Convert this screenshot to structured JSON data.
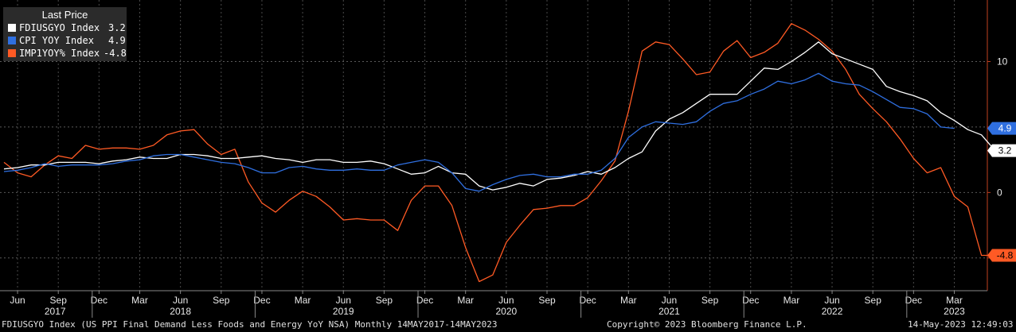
{
  "chart_data": {
    "type": "line",
    "legend": {
      "title": "Last Price",
      "placement": "top-left",
      "entries": [
        {
          "name": "FDIUSGYO Index",
          "last": "3.2",
          "color": "#ffffff"
        },
        {
          "name": "CPI YOY Index",
          "last": "4.9",
          "color": "#2f6fe0"
        },
        {
          "name": "IMP1YOY% Index",
          "last": "-4.8",
          "color": "#ff5a24"
        }
      ]
    },
    "ylim": [
      -7.5,
      14.7
    ],
    "yticks": [
      10,
      0
    ],
    "series": [
      {
        "name": "FDIUSGYO Index",
        "color": "#ffffff",
        "last_label": "3.2",
        "values": [
          1.8,
          1.9,
          2.1,
          2.1,
          2.3,
          2.3,
          2.3,
          2.2,
          2.4,
          2.5,
          2.7,
          2.6,
          2.6,
          2.9,
          2.9,
          2.8,
          2.6,
          2.6,
          2.7,
          2.8,
          2.6,
          2.5,
          2.3,
          2.5,
          2.5,
          2.3,
          2.3,
          2.4,
          2.2,
          1.8,
          1.4,
          1.5,
          2.0,
          1.5,
          1.4,
          0.5,
          0.2,
          0.4,
          0.7,
          0.5,
          1.0,
          1.1,
          1.3,
          1.6,
          1.4,
          1.9,
          2.6,
          3.1,
          4.7,
          5.6,
          6.1,
          6.8,
          7.5,
          7.5,
          7.5,
          8.5,
          9.5,
          9.4,
          10.0,
          10.7,
          11.5,
          10.6,
          10.2,
          9.8,
          9.4,
          8.1,
          7.7,
          7.4,
          7.0,
          6.1,
          5.5,
          4.8,
          4.4,
          3.2,
          3.2
        ]
      },
      {
        "name": "CPI YOY Index",
        "color": "#2f6fe0",
        "last_label": "4.9",
        "values": [
          1.6,
          1.7,
          1.9,
          2.2,
          2.0,
          2.1,
          2.1,
          2.1,
          2.2,
          2.4,
          2.5,
          2.8,
          2.9,
          2.9,
          2.7,
          2.5,
          2.3,
          2.2,
          1.9,
          1.5,
          1.5,
          1.9,
          2.0,
          1.8,
          1.7,
          1.7,
          1.8,
          1.7,
          1.7,
          2.1,
          2.3,
          2.5,
          2.3,
          1.5,
          0.3,
          0.1,
          0.6,
          1.0,
          1.3,
          1.4,
          1.2,
          1.2,
          1.4,
          1.4,
          1.7,
          2.6,
          4.2,
          5.0,
          5.4,
          5.3,
          5.2,
          5.4,
          6.2,
          6.8,
          7.0,
          7.5,
          7.9,
          8.5,
          8.3,
          8.6,
          9.1,
          8.5,
          8.3,
          8.2,
          7.7,
          7.1,
          6.5,
          6.4,
          6.0,
          5.0,
          4.9
        ]
      },
      {
        "name": "IMP1YOY% Index",
        "color": "#ff5a24",
        "last_label": "-4.8",
        "values": [
          2.3,
          1.5,
          1.2,
          2.1,
          2.8,
          2.6,
          3.6,
          3.3,
          3.4,
          3.4,
          3.3,
          3.6,
          4.4,
          4.7,
          4.8,
          3.7,
          2.9,
          3.3,
          0.8,
          -0.8,
          -1.5,
          -0.6,
          0.1,
          -0.3,
          -1.1,
          -2.1,
          -2.0,
          -2.1,
          -2.1,
          -2.9,
          -0.6,
          0.5,
          0.5,
          -1.0,
          -4.2,
          -6.8,
          -6.3,
          -3.8,
          -2.5,
          -1.3,
          -1.2,
          -1.0,
          -1.0,
          -0.4,
          0.9,
          2.4,
          6.2,
          10.8,
          11.5,
          11.3,
          10.2,
          9.0,
          9.2,
          10.8,
          11.6,
          10.3,
          10.7,
          11.4,
          12.9,
          12.4,
          11.7,
          10.8,
          9.4,
          7.5,
          6.4,
          5.4,
          4.1,
          2.6,
          1.5,
          1.9,
          -0.3,
          -1.1,
          -4.8,
          -4.8
        ]
      }
    ],
    "x_month_labels": [
      "Jun",
      "Sep",
      "Dec",
      "Mar",
      "Jun",
      "Sep",
      "Dec",
      "Mar",
      "Jun",
      "Sep",
      "Dec",
      "Mar",
      "Jun",
      "Sep",
      "Dec",
      "Mar",
      "Jun",
      "Sep",
      "Dec",
      "Mar",
      "Jun",
      "Sep",
      "Dec",
      "Mar"
    ],
    "x_year_labels": [
      "2017",
      "2018",
      "2019",
      "2020",
      "2021",
      "2022",
      "2023"
    ]
  },
  "footer": {
    "left": "FDIUSGYO Index (US PPI Final Demand Less Foods and Energy YoY NSA)  Monthly 14MAY2017-14MAY2023",
    "center": "Copyright© 2023 Bloomberg Finance L.P.",
    "right": "14-May-2023 12:49:03"
  }
}
